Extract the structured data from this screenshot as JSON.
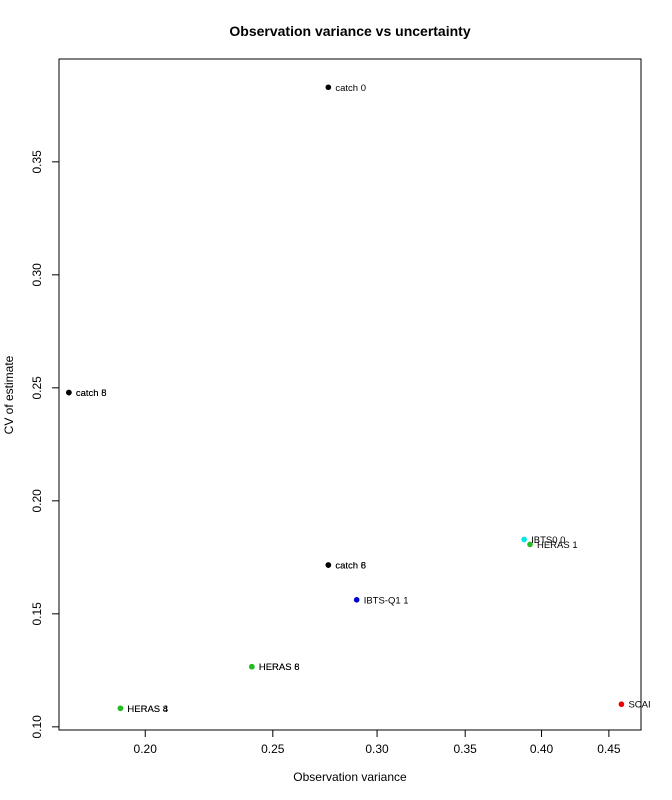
{
  "chart_data": {
    "type": "scatter",
    "title": "Observation variance vs uncertainty",
    "xlabel": "Observation variance",
    "ylabel": "CV of estimate",
    "x_scale": "log",
    "xlim": [
      0.172,
      0.476
    ],
    "ylim": [
      0.0986,
      0.3955
    ],
    "xticks": [
      0.2,
      0.25,
      0.3,
      0.35,
      0.4,
      0.45
    ],
    "xtick_labels": [
      "0.20",
      "0.25",
      "0.30",
      "0.35",
      "0.40",
      "0.45"
    ],
    "yticks": [
      0.1,
      0.15,
      0.2,
      0.25,
      0.3,
      0.35
    ],
    "ytick_labels": [
      "0.10",
      "0.15",
      "0.20",
      "0.25",
      "0.30",
      "0.35"
    ],
    "grid": false,
    "points": [
      {
        "x": 0.2755,
        "y": 0.383,
        "label": "catch 0",
        "color": "#000000"
      },
      {
        "x": 0.175,
        "y": 0.2479,
        "label": "catch 8",
        "color": "#000000"
      },
      {
        "x": 0.175,
        "y": 0.2479,
        "label": "catch 5",
        "color": "#000000"
      },
      {
        "x": 0.2755,
        "y": 0.1716,
        "label": "catch 8",
        "color": "#000000"
      },
      {
        "x": 0.2755,
        "y": 0.1716,
        "label": "catch 6",
        "color": "#000000"
      },
      {
        "x": 0.388,
        "y": 0.1829,
        "label": "IBTS0 0",
        "color": "#00e5e5"
      },
      {
        "x": 0.392,
        "y": 0.1807,
        "label": "HERAS 1",
        "color": "#22bb22"
      },
      {
        "x": 0.2895,
        "y": 0.1562,
        "label": "IBTS-Q1 1",
        "color": "#0000cc"
      },
      {
        "x": 0.241,
        "y": 0.1266,
        "label": "HERAS 8",
        "color": "#22bb22"
      },
      {
        "x": 0.241,
        "y": 0.1266,
        "label": "HERAS 6",
        "color": "#22bb22"
      },
      {
        "x": 0.1915,
        "y": 0.1082,
        "label": "HERAS 8",
        "color": "#22bb22"
      },
      {
        "x": 0.1915,
        "y": 0.1082,
        "label": "HERAS 4",
        "color": "#22bb22"
      },
      {
        "x": 0.46,
        "y": 0.11,
        "label": "SCAI",
        "color": "#ee0000"
      }
    ]
  }
}
